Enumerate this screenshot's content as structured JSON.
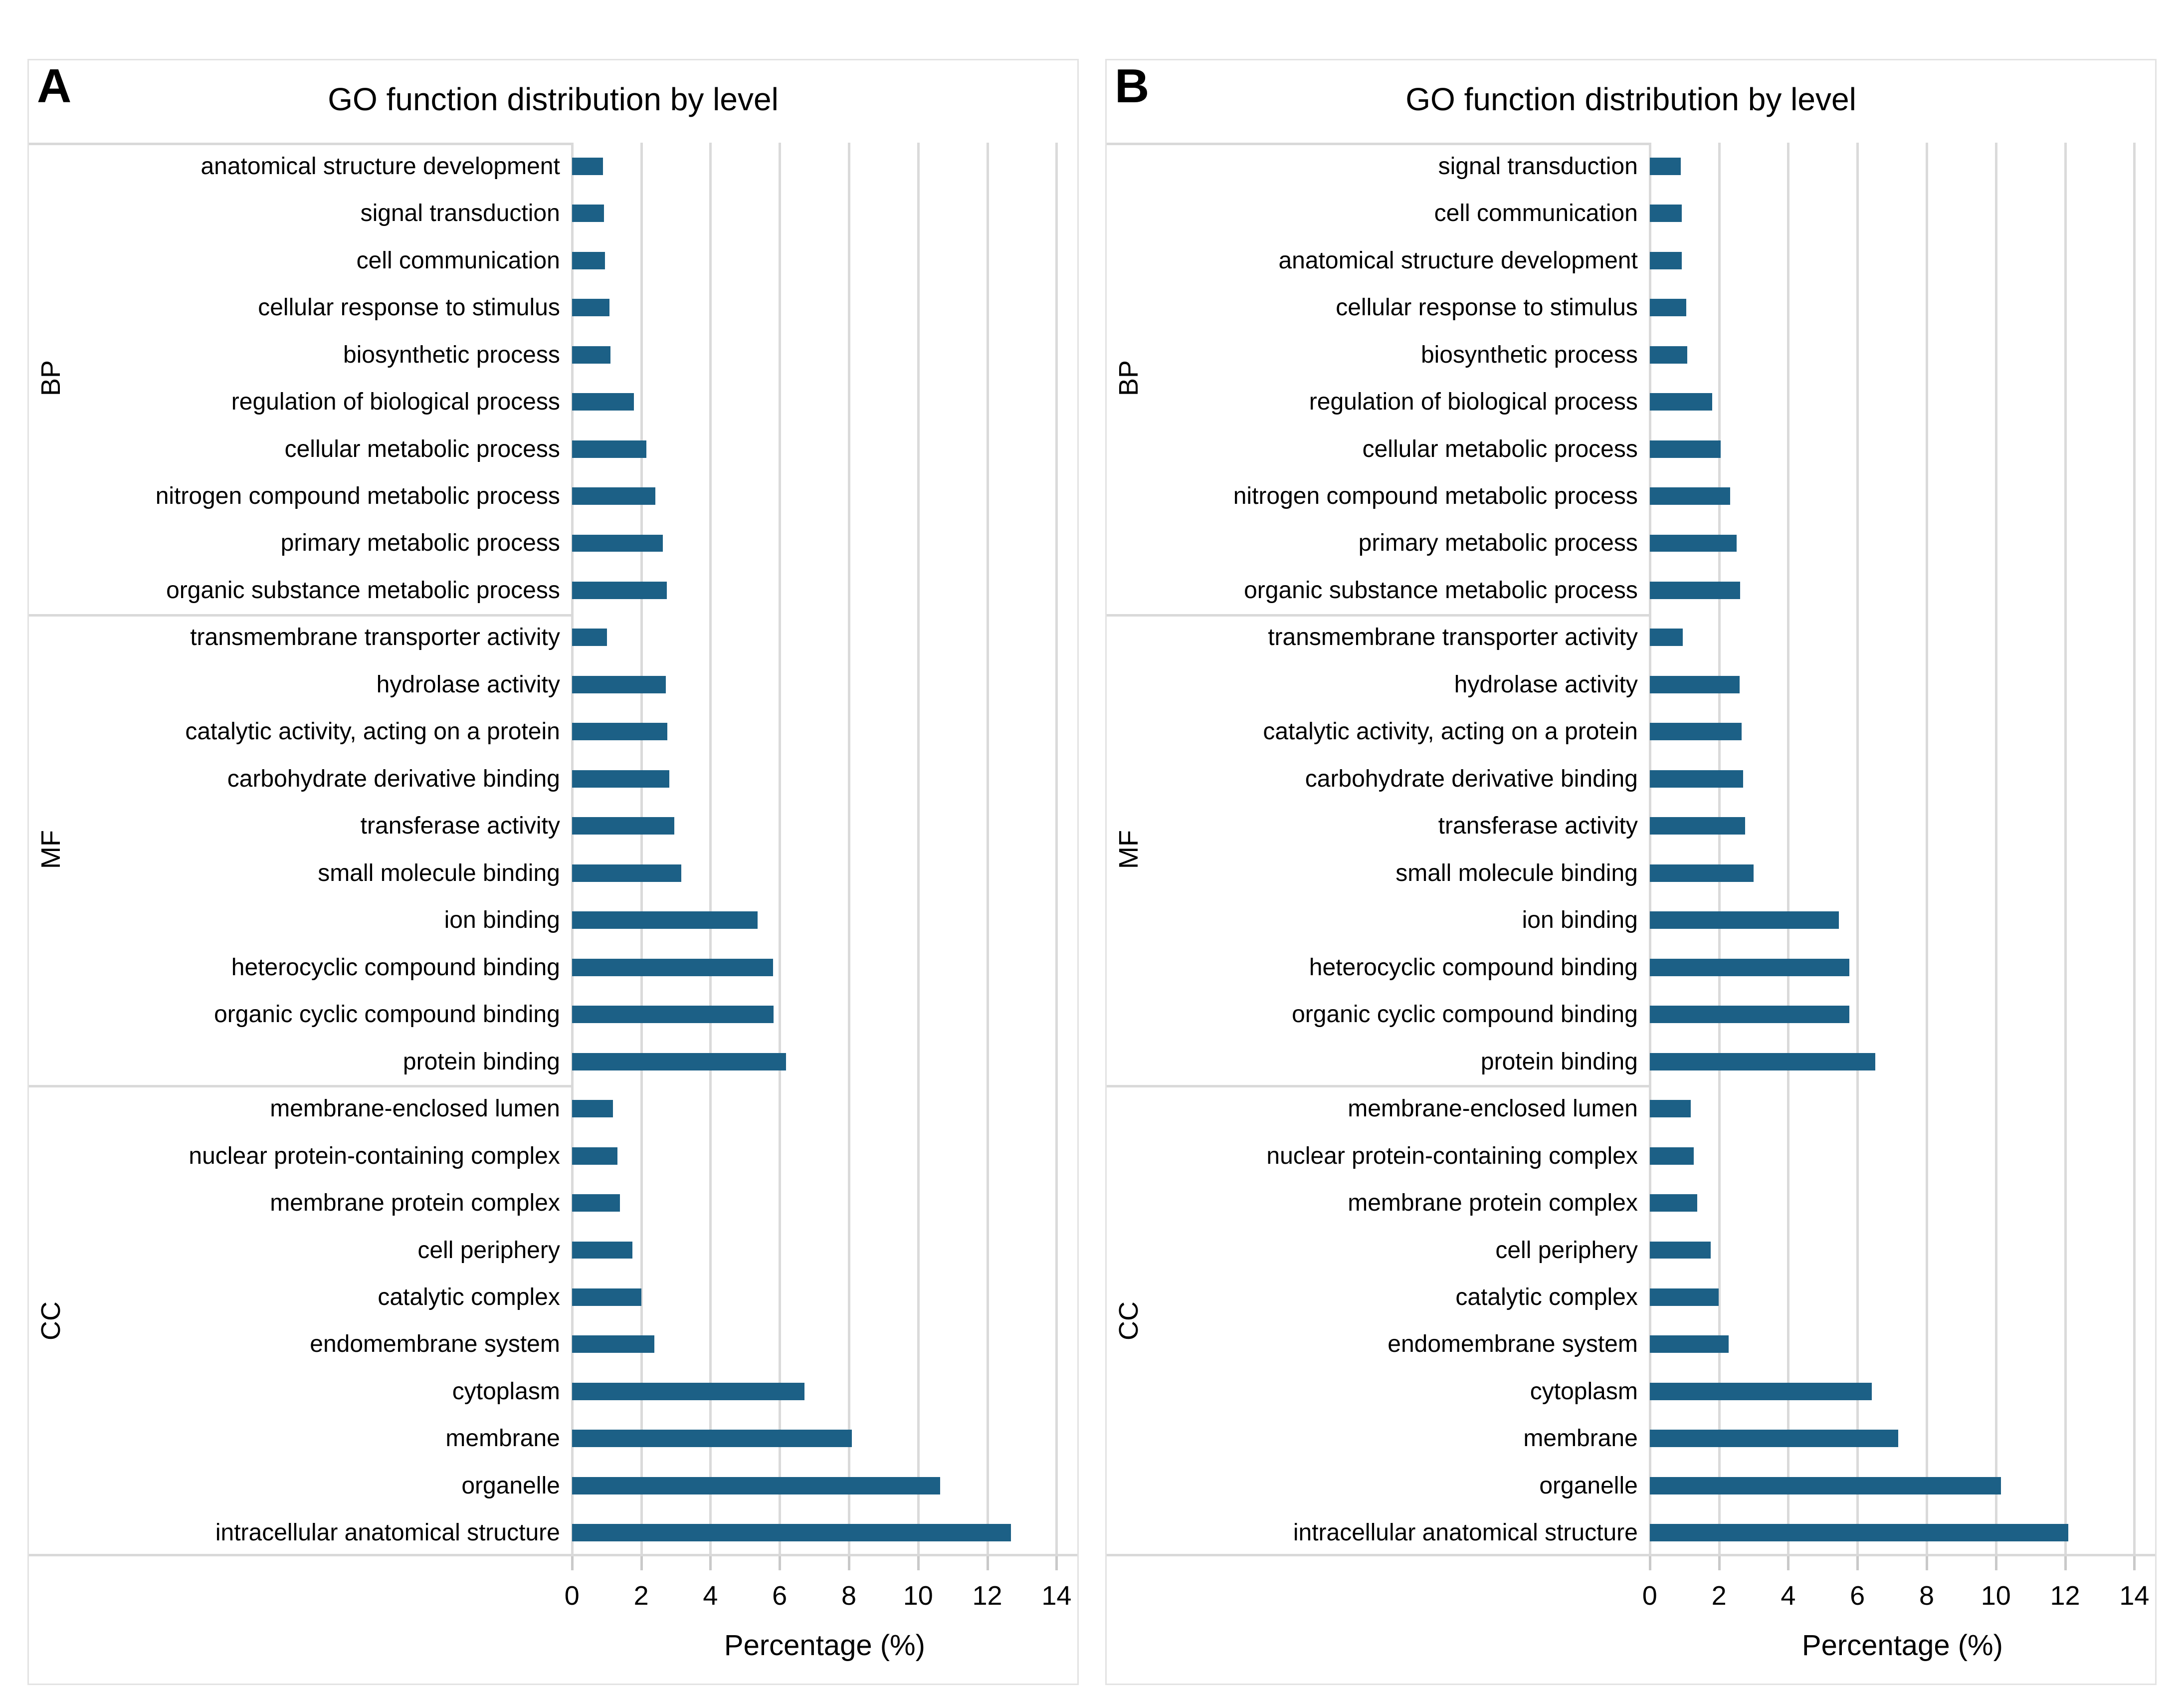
{
  "colors": {
    "bar": "#1c6086",
    "gridline": "#dadada",
    "separator": "#d9d9d9",
    "tick_mark": "#c9c9c9",
    "panel_border": "#e3e3e3",
    "text": "#000000"
  },
  "axis_title": "Percentage (%)",
  "chart_data": [
    {
      "type": "bar",
      "orientation": "horizontal",
      "panel_label": "A",
      "title": "GO function distribution by level",
      "xlabel": "Percentage (%)",
      "xlim": [
        0,
        14
      ],
      "xmax_draw": 14.6,
      "xticks": [
        0,
        2,
        4,
        6,
        8,
        10,
        12,
        14
      ],
      "grid": true,
      "bar_color": "#1c6086",
      "groups": [
        {
          "name": "BP",
          "categories": [
            "anatomical structure development",
            "signal transduction",
            "cell communication",
            "cellular response to stimulus",
            "biosynthetic process",
            "regulation of biological process",
            "cellular metabolic process",
            "nitrogen compound metabolic process",
            "primary metabolic process",
            "organic substance metabolic process"
          ],
          "values": [
            0.9,
            0.92,
            0.95,
            1.08,
            1.11,
            1.79,
            2.15,
            2.41,
            2.63,
            2.74
          ]
        },
        {
          "name": "MF",
          "categories": [
            "transmembrane transporter activity",
            "hydrolase activity",
            "catalytic activity, acting on a protein",
            "carbohydrate derivative binding",
            "transferase activity",
            "small molecule binding",
            "ion binding",
            "heterocyclic compound binding",
            "organic cyclic compound binding",
            "protein binding"
          ],
          "values": [
            1.01,
            2.71,
            2.76,
            2.81,
            2.96,
            3.16,
            5.37,
            5.81,
            5.83,
            6.19
          ]
        },
        {
          "name": "CC",
          "categories": [
            "membrane-enclosed lumen",
            "nuclear protein-containing complex",
            "membrane protein complex",
            "cell periphery",
            "catalytic complex",
            "endomembrane system",
            "cytoplasm",
            "membrane",
            "organelle",
            "intracellular anatomical structure"
          ],
          "values": [
            1.19,
            1.31,
            1.39,
            1.74,
            2.01,
            2.38,
            6.72,
            8.08,
            10.63,
            12.68
          ]
        }
      ]
    },
    {
      "type": "bar",
      "orientation": "horizontal",
      "panel_label": "B",
      "title": "GO function distribution by level",
      "xlabel": "Percentage (%)",
      "xlim": [
        0,
        14
      ],
      "xmax_draw": 14.6,
      "xticks": [
        0,
        2,
        4,
        6,
        8,
        10,
        12,
        14
      ],
      "grid": true,
      "bar_color": "#1c6086",
      "groups": [
        {
          "name": "BP",
          "categories": [
            "signal transduction",
            "cell communication",
            "anatomical structure development",
            "cellular response to stimulus",
            "biosynthetic process",
            "regulation of biological process",
            "cellular metabolic process",
            "nitrogen compound metabolic process",
            "primary metabolic process",
            "organic substance metabolic process"
          ],
          "values": [
            0.89,
            0.92,
            0.92,
            1.05,
            1.09,
            1.8,
            2.05,
            2.32,
            2.51,
            2.61
          ]
        },
        {
          "name": "MF",
          "categories": [
            "transmembrane transporter activity",
            "hydrolase activity",
            "catalytic activity, acting on a protein",
            "carbohydrate derivative binding",
            "transferase activity",
            "small molecule binding",
            "ion binding",
            "heterocyclic compound binding",
            "organic cyclic compound binding",
            "protein binding"
          ],
          "values": [
            0.96,
            2.6,
            2.66,
            2.69,
            2.76,
            3.0,
            5.47,
            5.77,
            5.77,
            6.51
          ]
        },
        {
          "name": "CC",
          "categories": [
            "membrane-enclosed lumen",
            "nuclear protein-containing complex",
            "membrane protein complex",
            "cell periphery",
            "catalytic complex",
            "endomembrane system",
            "cytoplasm",
            "membrane",
            "organelle",
            "intracellular anatomical structure"
          ],
          "values": [
            1.19,
            1.27,
            1.37,
            1.76,
            1.99,
            2.28,
            6.42,
            7.18,
            10.15,
            12.09
          ]
        }
      ]
    }
  ]
}
